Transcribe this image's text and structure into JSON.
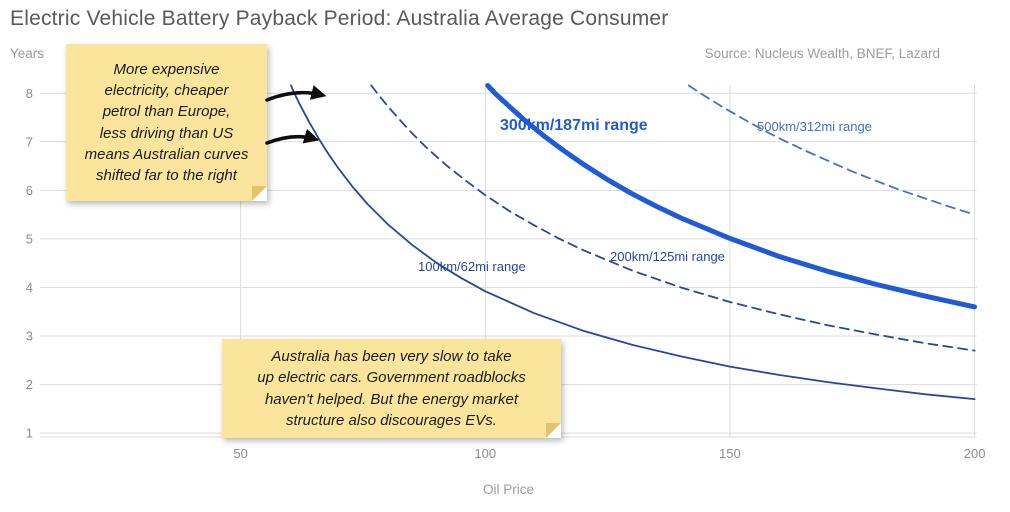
{
  "header": {
    "title": "Electric Vehicle Battery Payback Period: Australia Average Consumer",
    "source": "Source: Nucleus Wealth, BNEF, Lazard"
  },
  "chart_data": {
    "type": "line",
    "title": "Electric Vehicle Battery Payback Period: Australia Average Consumer",
    "xlabel": "Oil Price",
    "ylabel": "Years",
    "xlim": [
      9,
      200.5
    ],
    "ylim": [
      0.92,
      8.17
    ],
    "x_ticks": [
      50,
      100,
      150,
      200
    ],
    "y_ticks": [
      1,
      2,
      3,
      4,
      5,
      6,
      7,
      8
    ],
    "grid": true,
    "legend_position": "inline-labels",
    "series": [
      {
        "name": "100km/62mi range",
        "color": "#26479B",
        "style": "solid",
        "width": 1.8,
        "points": [
          [
            60.3,
            8.16
          ],
          [
            61,
            8.0
          ],
          [
            62,
            7.79
          ],
          [
            64,
            7.41
          ],
          [
            66,
            7.06
          ],
          [
            68,
            6.74
          ],
          [
            70,
            6.45
          ],
          [
            73,
            6.06
          ],
          [
            76,
            5.71
          ],
          [
            80,
            5.31
          ],
          [
            85,
            4.88
          ],
          [
            90,
            4.51
          ],
          [
            95,
            4.2
          ],
          [
            100,
            3.92
          ],
          [
            110,
            3.47
          ],
          [
            120,
            3.11
          ],
          [
            130,
            2.82
          ],
          [
            140,
            2.58
          ],
          [
            150,
            2.37
          ],
          [
            160,
            2.2
          ],
          [
            170,
            2.05
          ],
          [
            180,
            1.92
          ],
          [
            190,
            1.8
          ],
          [
            200,
            1.7
          ]
        ]
      },
      {
        "name": "200km/125mi range",
        "color": "#26479B",
        "style": "dashed",
        "width": 1.8,
        "points": [
          [
            76.7,
            8.16
          ],
          [
            78,
            7.99
          ],
          [
            80,
            7.74
          ],
          [
            82,
            7.51
          ],
          [
            85,
            7.18
          ],
          [
            88,
            6.88
          ],
          [
            92,
            6.52
          ],
          [
            96,
            6.2
          ],
          [
            100,
            5.9
          ],
          [
            105,
            5.57
          ],
          [
            110,
            5.28
          ],
          [
            115,
            5.01
          ],
          [
            120,
            4.77
          ],
          [
            130,
            4.35
          ],
          [
            140,
            4.0
          ],
          [
            150,
            3.7
          ],
          [
            160,
            3.45
          ],
          [
            170,
            3.22
          ],
          [
            180,
            3.03
          ],
          [
            190,
            2.85
          ],
          [
            200,
            2.7
          ]
        ]
      },
      {
        "name": "300km/187mi range",
        "color": "#1F5BD4",
        "style": "solid",
        "width": 5,
        "points": [
          [
            100.5,
            8.16
          ],
          [
            102,
            8.0
          ],
          [
            105,
            7.72
          ],
          [
            108,
            7.45
          ],
          [
            112,
            7.12
          ],
          [
            116,
            6.82
          ],
          [
            120,
            6.54
          ],
          [
            125,
            6.22
          ],
          [
            130,
            5.93
          ],
          [
            135,
            5.67
          ],
          [
            140,
            5.43
          ],
          [
            150,
            5.01
          ],
          [
            160,
            4.64
          ],
          [
            170,
            4.33
          ],
          [
            180,
            4.06
          ],
          [
            190,
            3.82
          ],
          [
            200,
            3.6
          ]
        ]
      },
      {
        "name": "500km/312mi range",
        "color": "#4472C4",
        "style": "dashed",
        "width": 1.8,
        "points": [
          [
            141.6,
            8.16
          ],
          [
            144,
            8.0
          ],
          [
            147,
            7.81
          ],
          [
            150,
            7.63
          ],
          [
            154,
            7.4
          ],
          [
            158,
            7.18
          ],
          [
            162,
            6.98
          ],
          [
            166,
            6.79
          ],
          [
            170,
            6.61
          ],
          [
            175,
            6.39
          ],
          [
            180,
            6.19
          ],
          [
            185,
            6.0
          ],
          [
            190,
            5.83
          ],
          [
            195,
            5.66
          ],
          [
            200,
            5.5
          ]
        ]
      }
    ]
  },
  "annotations": {
    "note_top_left": "More expensive\nelectricity, cheaper\npetrol than Europe,\nless driving than US\nmeans Australian curves\nshifted far to the right",
    "note_bottom": "Australia has been very slow to take\nup electric cars. Government roadblocks\nhaven't helped. But the energy market\nstructure also discourages EVs."
  },
  "colors": {
    "title_text": "#595959",
    "axis_text": "#8C8C8C",
    "gridline": "#DCDCDC",
    "note_background": "#FBE49B",
    "note_fold": "#E2C36E",
    "arrow": "#0D0D0D"
  }
}
